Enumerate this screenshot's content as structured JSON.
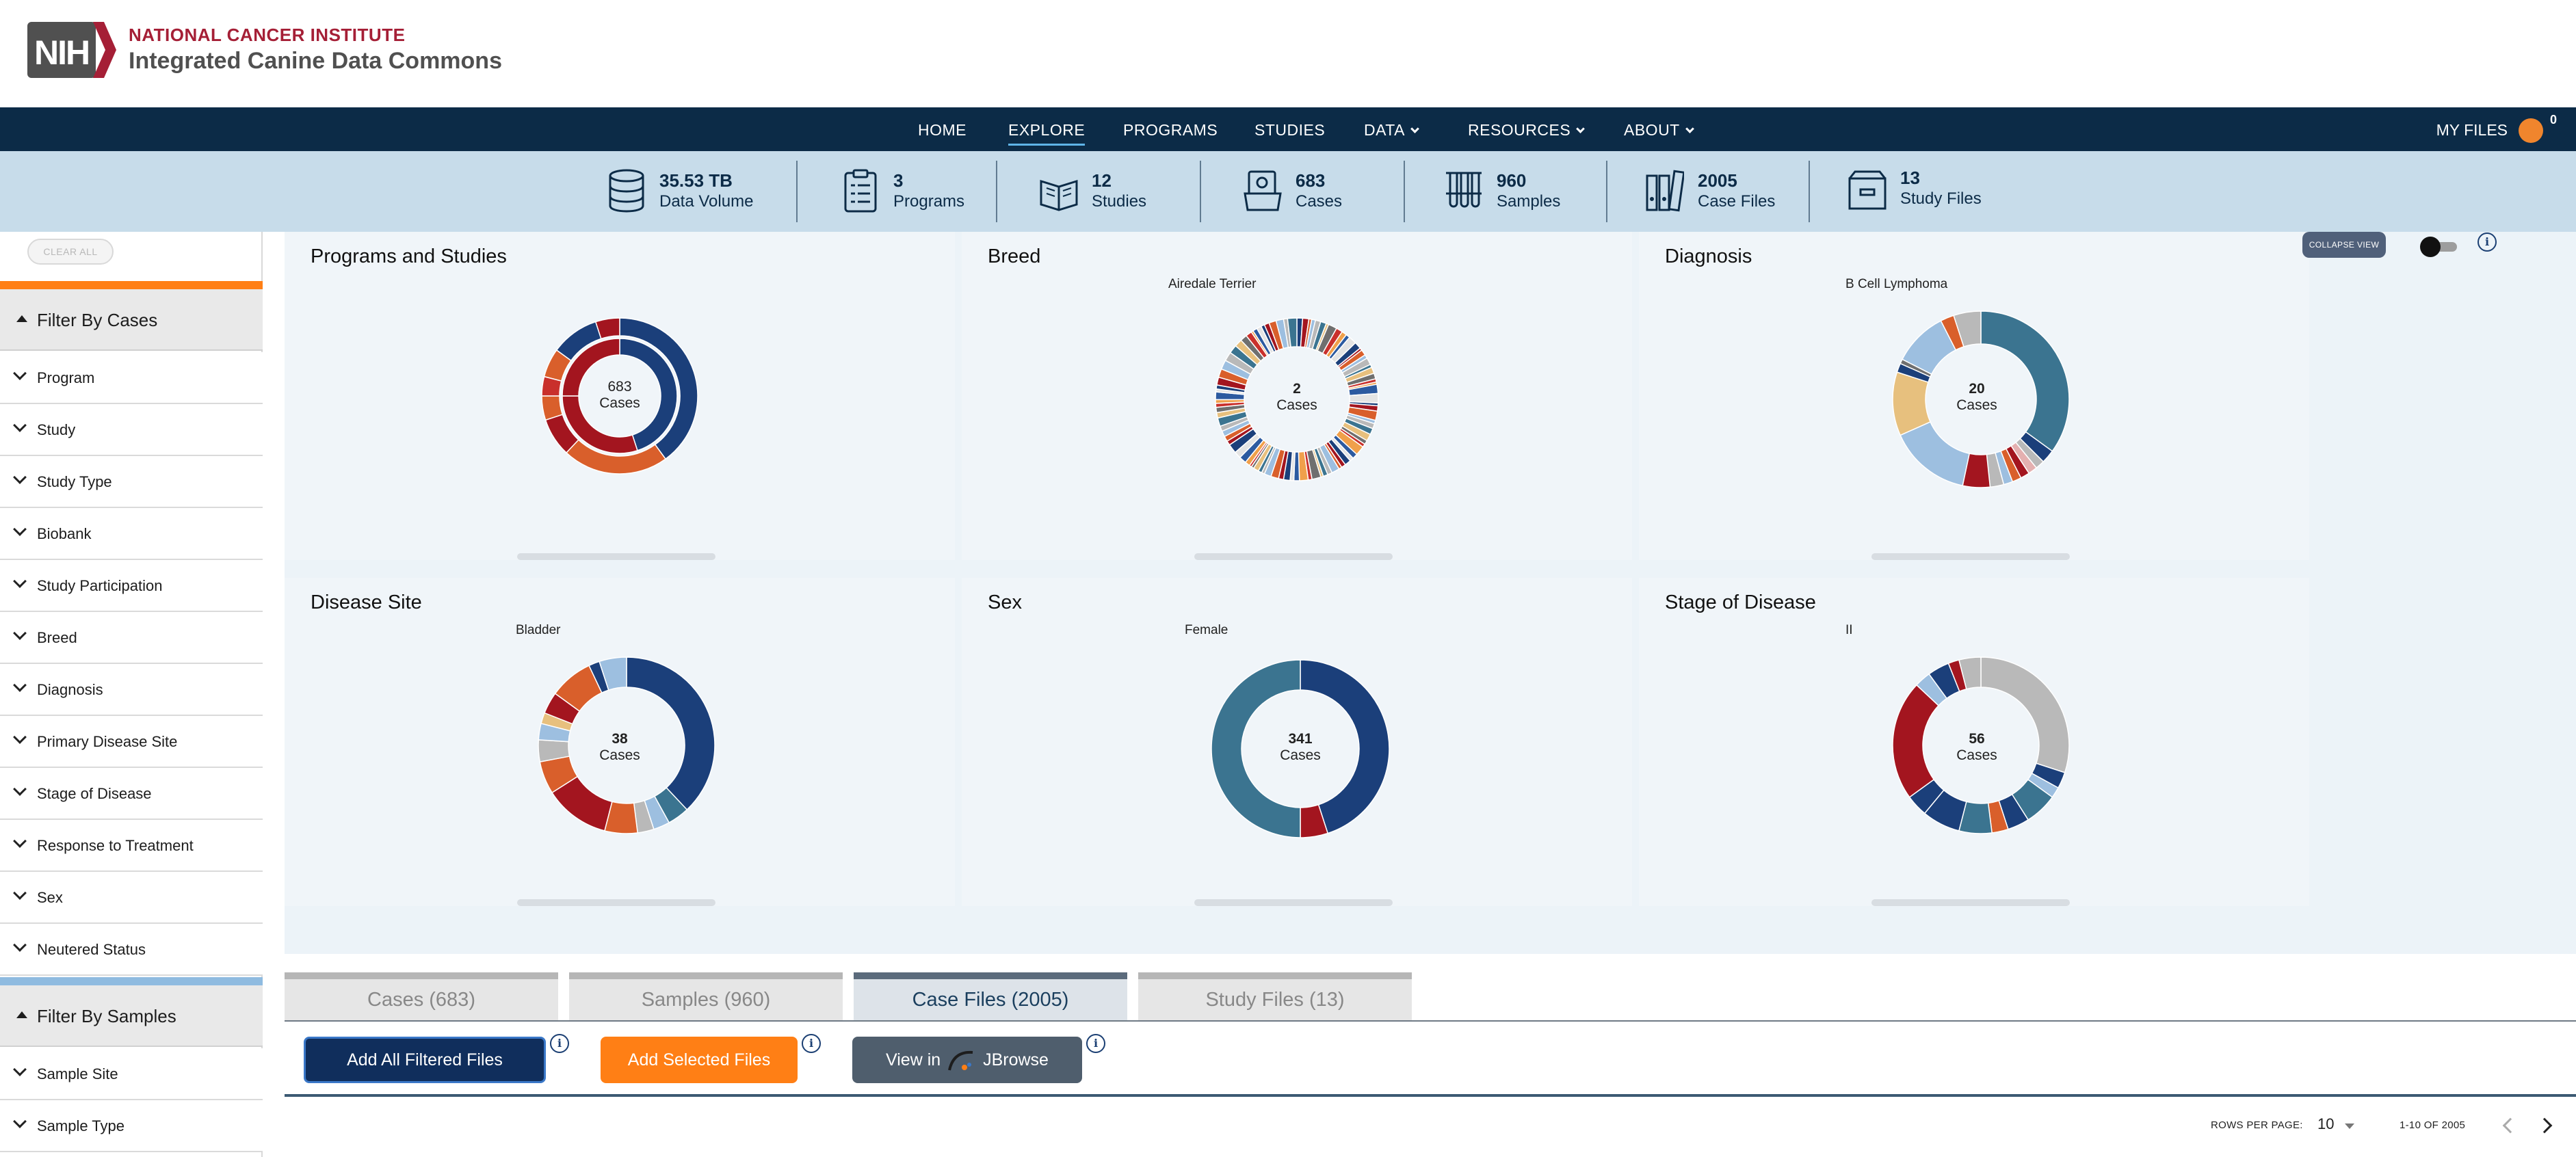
{
  "header": {
    "logo_text": "NIH",
    "org_title": "NATIONAL CANCER INSTITUTE",
    "app_title": "Integrated Canine Data Commons"
  },
  "nav": {
    "items": [
      "HOME",
      "EXPLORE",
      "PROGRAMS",
      "STUDIES",
      "DATA",
      "RESOURCES",
      "ABOUT"
    ],
    "active": "EXPLORE",
    "my_files": "MY FILES",
    "cart_count": "0"
  },
  "stats": [
    {
      "value": "35.53 TB",
      "label": "Data Volume",
      "icon": "database-icon"
    },
    {
      "value": "3",
      "label": "Programs",
      "icon": "clipboard-icon"
    },
    {
      "value": "12",
      "label": "Studies",
      "icon": "open-book-icon"
    },
    {
      "value": "683",
      "label": "Cases",
      "icon": "case-folder-icon"
    },
    {
      "value": "960",
      "label": "Samples",
      "icon": "test-tubes-icon"
    },
    {
      "value": "2005",
      "label": "Case Files",
      "icon": "binders-icon"
    },
    {
      "value": "13",
      "label": "Study Files",
      "icon": "file-box-icon"
    }
  ],
  "sidebar": {
    "clear_all": "CLEAR ALL",
    "group_cases": "Filter By Cases",
    "case_filters": [
      "Program",
      "Study",
      "Study Type",
      "Biobank",
      "Study Participation",
      "Breed",
      "Diagnosis",
      "Primary Disease Site",
      "Stage of Disease",
      "Response to Treatment",
      "Sex",
      "Neutered Status"
    ],
    "group_samples": "Filter By Samples",
    "sample_filters": [
      "Sample Site",
      "Sample Type"
    ],
    "accent_cases": "#ff7f15",
    "accent_samples": "#8fbbe0"
  },
  "charts": {
    "collapse_view": "COLLAPSE VIEW",
    "widgets": [
      {
        "title": "Programs and Studies",
        "subtitle": "",
        "count": "683",
        "unit": "Cases"
      },
      {
        "title": "Breed",
        "subtitle": "Airedale Terrier",
        "count": "2",
        "unit": "Cases"
      },
      {
        "title": "Diagnosis",
        "subtitle": "B Cell Lymphoma",
        "count": "20",
        "unit": "Cases"
      },
      {
        "title": "Disease Site",
        "subtitle": "Bladder",
        "count": "38",
        "unit": "Cases"
      },
      {
        "title": "Sex",
        "subtitle": "Female",
        "count": "341",
        "unit": "Cases"
      },
      {
        "title": "Stage of Disease",
        "subtitle": "II",
        "count": "56",
        "unit": "Cases"
      }
    ]
  },
  "tabs": [
    {
      "label": "Cases (683)",
      "active": false
    },
    {
      "label": "Samples (960)",
      "active": false
    },
    {
      "label": "Case Files (2005)",
      "active": true
    },
    {
      "label": "Study Files (13)",
      "active": false
    }
  ],
  "actions": {
    "add_all": "Add All Filtered Files",
    "add_selected": "Add Selected Files",
    "view_in": "View in",
    "jbrowse": "JBrowse"
  },
  "pagination": {
    "rows_label": "ROWS PER PAGE:",
    "rows_value": "10",
    "range": "1-10 OF 2005"
  },
  "colors": {
    "navy": "#0c2b47",
    "stats_bg": "#c7dcea",
    "nci_red": "#a51f36",
    "orange": "#ff7f15"
  }
}
